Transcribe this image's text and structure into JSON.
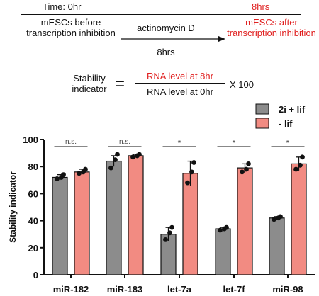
{
  "timeline": {
    "time_start": "Time: 0hr",
    "time_end": "8hrs",
    "before_label": "mESCs before transcription inhibition",
    "treatment_label": "actinomycin D",
    "duration_label": "8hrs",
    "after_label": "mESCs after transcription inhibition",
    "colors": {
      "text": "#111111",
      "accent": "#e02020"
    }
  },
  "formula": {
    "lhs": "Stability indicator",
    "numerator": "RNA level at 8hr",
    "denominator": "RNA level at 0hr",
    "multiplier": "X 100"
  },
  "chart_data": {
    "type": "bar",
    "ylabel": "Stability indicator",
    "ylim": [
      0,
      100
    ],
    "yticks": [
      0,
      20,
      40,
      60,
      80,
      100
    ],
    "categories": [
      "miR-182",
      "miR-183",
      "let-7a",
      "let-7f",
      "miR-98"
    ],
    "series": [
      {
        "name": "2i + lif",
        "color": "#8c8c8c",
        "values": [
          72,
          84,
          30,
          34,
          42
        ],
        "error": [
          2,
          4,
          5,
          1,
          1
        ],
        "points": [
          [
            71,
            72,
            74
          ],
          [
            79,
            85,
            89
          ],
          [
            26,
            31,
            35
          ],
          [
            33,
            34,
            35
          ],
          [
            41,
            42,
            43
          ]
        ]
      },
      {
        "name": "- lif",
        "color": "#f28b82",
        "values": [
          76,
          88,
          75,
          79,
          82
        ],
        "error": [
          2,
          1,
          9,
          3,
          5
        ],
        "points": [
          [
            75,
            76,
            78
          ],
          [
            87,
            88,
            89
          ],
          [
            68,
            76,
            83
          ],
          [
            76,
            78,
            82
          ],
          [
            78,
            81,
            87
          ]
        ]
      }
    ],
    "significance": [
      "n.s.",
      "n.s.",
      "*",
      "*",
      "*"
    ],
    "legend_position": "top-right"
  }
}
